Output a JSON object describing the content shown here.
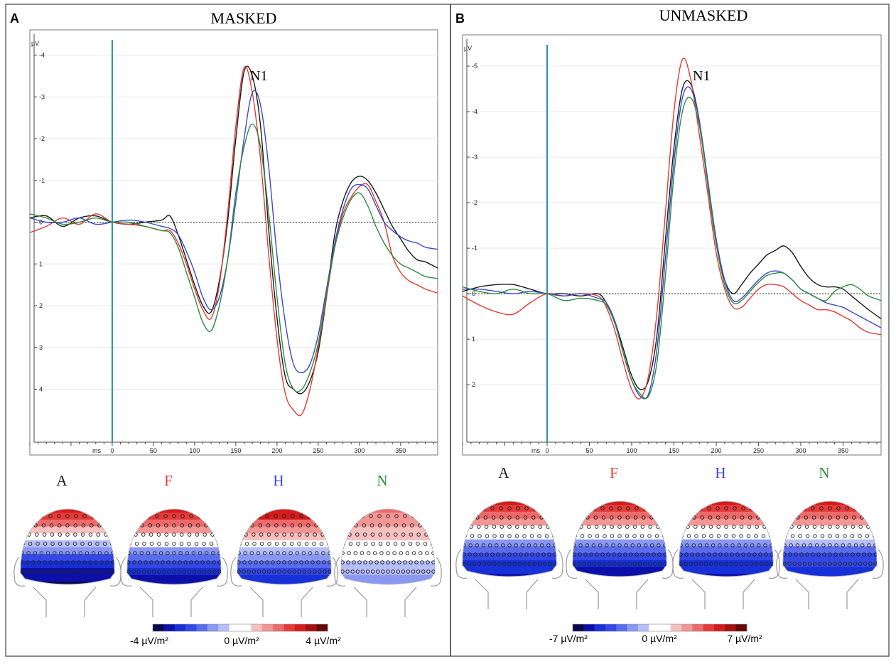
{
  "colors": {
    "A": "#1a1a1a",
    "F": "#e53935",
    "H": "#3949c8",
    "N": "#2e8b3e",
    "onset": "#2f8fb0"
  },
  "chart_data": [
    {
      "panel": "A",
      "type": "line",
      "title": "MASKED",
      "xlabel": "ms",
      "ylabel": "µV",
      "xlim": [
        -100,
        395
      ],
      "ylim": [
        -4.4,
        5.2
      ],
      "y_inverted": true,
      "x_ticks": [
        "0",
        "50",
        "100",
        "150",
        "200",
        "250",
        "300",
        "350"
      ],
      "y_ticks": [
        "-4",
        "-3",
        "-2",
        "-1",
        "0",
        "1",
        "2",
        "3",
        "4"
      ],
      "annotation": "N1",
      "series": [
        {
          "name": "A",
          "x": [
            -100,
            -80,
            -60,
            -40,
            -20,
            0,
            20,
            40,
            60,
            70,
            80,
            90,
            100,
            110,
            120,
            130,
            140,
            150,
            160,
            170,
            180,
            190,
            200,
            210,
            220,
            230,
            240,
            250,
            260,
            270,
            280,
            290,
            300,
            310,
            320,
            330,
            340,
            350,
            360,
            370,
            380,
            395
          ],
          "y": [
            -0.1,
            -0.15,
            0.1,
            -0.1,
            -0.15,
            0,
            0.05,
            0,
            -0.05,
            -0.15,
            0.3,
            0.9,
            1.5,
            2.0,
            2.15,
            1.4,
            0,
            -2.0,
            -3.6,
            -3.5,
            -2.3,
            0.2,
            2.3,
            3.7,
            4.0,
            4.1,
            3.8,
            3.1,
            1.8,
            0.3,
            -0.5,
            -0.95,
            -1.1,
            -1.0,
            -0.7,
            -0.3,
            0.1,
            0.4,
            0.7,
            0.9,
            0.95,
            1.1
          ]
        },
        {
          "name": "F",
          "x": [
            -100,
            -80,
            -60,
            -40,
            -20,
            0,
            20,
            40,
            60,
            70,
            80,
            90,
            100,
            110,
            120,
            130,
            140,
            150,
            160,
            170,
            180,
            190,
            200,
            210,
            220,
            230,
            240,
            250,
            260,
            270,
            280,
            290,
            300,
            310,
            320,
            330,
            340,
            350,
            360,
            370,
            380,
            395
          ],
          "y": [
            0.25,
            0.1,
            -0.1,
            0.05,
            -0.2,
            0,
            0.05,
            0.1,
            0.2,
            0.2,
            0.5,
            1.0,
            1.6,
            2.1,
            2.3,
            1.5,
            -0.2,
            -2.3,
            -3.7,
            -3.1,
            -1.5,
            0.8,
            2.8,
            4.1,
            4.5,
            4.6,
            4.0,
            3.0,
            1.8,
            0.6,
            -0.2,
            -0.6,
            -0.85,
            -0.9,
            -0.5,
            0,
            0.8,
            1.2,
            1.4,
            1.5,
            1.6,
            1.7
          ]
        },
        {
          "name": "H",
          "x": [
            -100,
            -80,
            -60,
            -40,
            -20,
            0,
            20,
            40,
            60,
            70,
            80,
            90,
            100,
            110,
            120,
            130,
            140,
            150,
            160,
            170,
            180,
            190,
            200,
            210,
            220,
            230,
            240,
            250,
            260,
            270,
            280,
            290,
            300,
            310,
            320,
            330,
            340,
            350,
            360,
            370,
            380,
            395
          ],
          "y": [
            -0.1,
            0,
            0,
            -0.1,
            0.05,
            0,
            -0.05,
            0,
            0.1,
            0.15,
            0.3,
            0.7,
            1.2,
            1.8,
            2.1,
            1.8,
            0.9,
            -0.5,
            -2.0,
            -3.1,
            -2.8,
            -1.3,
            0.8,
            2.4,
            3.4,
            3.6,
            3.4,
            2.7,
            1.6,
            0.5,
            -0.3,
            -0.8,
            -0.9,
            -0.8,
            -0.4,
            0,
            0.2,
            0.35,
            0.45,
            0.5,
            0.6,
            0.65
          ]
        },
        {
          "name": "N",
          "x": [
            -100,
            -80,
            -60,
            -40,
            -20,
            0,
            20,
            40,
            60,
            70,
            80,
            90,
            100,
            110,
            120,
            130,
            140,
            150,
            160,
            170,
            180,
            190,
            200,
            210,
            220,
            230,
            240,
            250,
            260,
            270,
            280,
            290,
            300,
            310,
            320,
            330,
            340,
            350,
            360,
            370,
            380,
            395
          ],
          "y": [
            -0.2,
            -0.1,
            0.05,
            0,
            -0.1,
            0,
            0,
            0.1,
            0.2,
            0.25,
            0.6,
            1.2,
            1.8,
            2.4,
            2.6,
            2.0,
            0.9,
            -0.7,
            -1.8,
            -2.35,
            -1.8,
            -0.2,
            1.8,
            3.4,
            4.0,
            4.0,
            3.6,
            2.9,
            1.7,
            0.6,
            -0.1,
            -0.55,
            -0.7,
            -0.4,
            0.1,
            0.5,
            0.8,
            1.0,
            1.1,
            1.2,
            1.3,
            1.35
          ]
        }
      ]
    },
    {
      "panel": "B",
      "type": "line",
      "title": "UNMASKED",
      "xlabel": "ms",
      "ylabel": "µV",
      "xlim": [
        -100,
        395
      ],
      "ylim": [
        -5.5,
        3.2
      ],
      "y_inverted": true,
      "x_ticks": [
        "0",
        "50",
        "100",
        "150",
        "200",
        "250",
        "300",
        "350"
      ],
      "y_ticks": [
        "-5",
        "-4",
        "-3",
        "-2",
        "-1",
        "0",
        "1",
        "2"
      ],
      "annotation": "N1",
      "series": [
        {
          "name": "A",
          "x": [
            -100,
            -80,
            -60,
            -40,
            -20,
            0,
            20,
            40,
            60,
            70,
            80,
            90,
            100,
            110,
            120,
            130,
            140,
            150,
            160,
            170,
            180,
            190,
            200,
            210,
            220,
            230,
            240,
            250,
            260,
            270,
            280,
            290,
            300,
            310,
            320,
            330,
            340,
            350,
            360,
            370,
            380,
            395
          ],
          "y": [
            -0.05,
            -0.15,
            -0.2,
            -0.2,
            -0.1,
            0,
            0,
            0.05,
            0,
            0.2,
            0.6,
            1.2,
            1.8,
            2.1,
            1.9,
            0.9,
            -1.2,
            -3.2,
            -4.5,
            -4.6,
            -3.8,
            -2.4,
            -1.1,
            -0.3,
            0,
            -0.2,
            -0.45,
            -0.65,
            -0.85,
            -0.95,
            -1.05,
            -0.9,
            -0.6,
            -0.35,
            -0.2,
            -0.15,
            -0.15,
            -0.1,
            0.05,
            0.2,
            0.35,
            0.55
          ]
        },
        {
          "name": "F",
          "x": [
            -100,
            -80,
            -60,
            -40,
            -20,
            0,
            20,
            40,
            60,
            70,
            80,
            90,
            100,
            110,
            120,
            130,
            140,
            150,
            160,
            170,
            180,
            190,
            200,
            210,
            220,
            230,
            240,
            250,
            260,
            270,
            280,
            290,
            300,
            310,
            320,
            330,
            340,
            350,
            360,
            370,
            380,
            395
          ],
          "y": [
            0.05,
            0.25,
            0.4,
            0.45,
            0.2,
            0,
            0.05,
            0,
            0.05,
            0.3,
            0.8,
            1.5,
            2.1,
            2.3,
            1.8,
            0.4,
            -1.8,
            -4.0,
            -5.15,
            -4.7,
            -3.5,
            -2.2,
            -0.9,
            -0.1,
            0.3,
            0.3,
            0.1,
            -0.1,
            -0.2,
            -0.2,
            -0.15,
            0,
            0.15,
            0.25,
            0.35,
            0.35,
            0.4,
            0.5,
            0.6,
            0.75,
            0.85,
            0.9
          ]
        },
        {
          "name": "H",
          "x": [
            -100,
            -80,
            -60,
            -40,
            -20,
            0,
            20,
            40,
            60,
            70,
            80,
            90,
            100,
            110,
            120,
            130,
            140,
            150,
            160,
            170,
            180,
            190,
            200,
            210,
            220,
            230,
            240,
            250,
            260,
            270,
            280,
            290,
            300,
            310,
            320,
            330,
            340,
            350,
            360,
            370,
            380,
            395
          ],
          "y": [
            -0.1,
            -0.1,
            -0.05,
            0,
            -0.05,
            0,
            0.05,
            0,
            0.1,
            0.2,
            0.6,
            1.3,
            1.9,
            2.25,
            2.2,
            1.2,
            -0.8,
            -2.9,
            -4.3,
            -4.5,
            -3.8,
            -2.5,
            -1.2,
            -0.3,
            0.15,
            0.1,
            -0.1,
            -0.3,
            -0.45,
            -0.5,
            -0.45,
            -0.3,
            -0.1,
            0,
            0.1,
            0.2,
            0.25,
            0.3,
            0.4,
            0.5,
            0.6,
            0.75
          ]
        },
        {
          "name": "N",
          "x": [
            -100,
            -80,
            -60,
            -40,
            -20,
            0,
            20,
            40,
            60,
            70,
            80,
            90,
            100,
            110,
            120,
            130,
            140,
            150,
            160,
            170,
            180,
            190,
            200,
            210,
            220,
            230,
            240,
            250,
            260,
            270,
            280,
            290,
            300,
            310,
            320,
            330,
            340,
            350,
            360,
            370,
            380,
            395
          ],
          "y": [
            -0.15,
            -0.05,
            0,
            -0.1,
            0,
            0,
            0.15,
            0.1,
            0.15,
            0.25,
            0.65,
            1.3,
            1.9,
            2.2,
            2.25,
            1.5,
            -0.4,
            -2.6,
            -4.0,
            -4.3,
            -3.7,
            -2.4,
            -1.1,
            -0.2,
            0.2,
            0.15,
            -0.05,
            -0.25,
            -0.4,
            -0.45,
            -0.45,
            -0.3,
            -0.1,
            0,
            0.1,
            0.15,
            -0.05,
            -0.15,
            -0.2,
            -0.1,
            0.05,
            0.15
          ]
        }
      ]
    }
  ],
  "topomaps": {
    "panels": [
      {
        "conditions": [
          {
            "label": "A",
            "color_key": "A",
            "front": 0.85,
            "back": -0.95
          },
          {
            "label": "F",
            "color_key": "F",
            "front": 0.85,
            "back": -0.85
          },
          {
            "label": "H",
            "color_key": "H",
            "front": 0.9,
            "back": -0.75
          },
          {
            "label": "N",
            "color_key": "N",
            "front": 0.5,
            "back": -0.3
          }
        ]
      },
      {
        "conditions": [
          {
            "label": "A",
            "color_key": "A",
            "front": 0.8,
            "back": -0.8
          },
          {
            "label": "F",
            "color_key": "F",
            "front": 0.85,
            "back": -0.9
          },
          {
            "label": "H",
            "color_key": "H",
            "front": 0.8,
            "back": -0.8
          },
          {
            "label": "N",
            "color_key": "N",
            "front": 0.8,
            "back": -0.75
          }
        ]
      }
    ],
    "colorbars": [
      {
        "min_label": "-4 µV/m²",
        "mid_label": "0 µV/m²",
        "max_label": "4 µV/m²"
      },
      {
        "min_label": "-7 µV/m²",
        "mid_label": "0 µV/m²",
        "max_label": "7 µV/m²"
      }
    ],
    "scale_colors": [
      "#08084a",
      "#0c10a8",
      "#1730d8",
      "#3348e6",
      "#5a6cee",
      "#8a98f3",
      "#b6bff8",
      "#ffffff",
      "#ffffff",
      "#f7c0c0",
      "#f29696",
      "#ed6a6a",
      "#e53a3a",
      "#d41c1c",
      "#a81010",
      "#650808"
    ]
  }
}
